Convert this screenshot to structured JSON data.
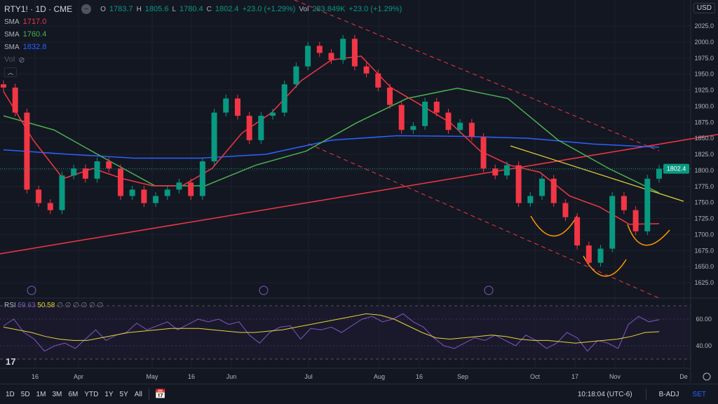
{
  "header": {
    "symbol": "RTY1! · 1D · CME",
    "o_label": "O",
    "open": "1783.7",
    "h_label": "H",
    "high": "1805.6",
    "l_label": "L",
    "low": "1780.4",
    "c_label": "C",
    "close": "1802.4",
    "change": "+23.0 (+1.29%)",
    "vol_label": "Vol",
    "volume": "283.849K",
    "vol_change": "+23.0 (+1.29%)",
    "currency": "USD"
  },
  "indicators": [
    {
      "name": "SMA",
      "value": "1717.0",
      "color": "#f23645"
    },
    {
      "name": "SMA",
      "value": "1760.4",
      "color": "#4caf50"
    },
    {
      "name": "SMA",
      "value": "1832.8",
      "color": "#2962ff"
    }
  ],
  "vol_label": "Vol",
  "rsi": {
    "label": "RSI",
    "value": "59.63",
    "ma_value": "50.58",
    "extra": "∅ ∅ ∅ ∅ ∅ ∅",
    "levels": [
      "60.00",
      "40.00"
    ],
    "color": "#7e57c2",
    "ma_color": "#e6d33a"
  },
  "chart_data": {
    "type": "candlestick",
    "symbol": "RTY1!",
    "price_ticks": [
      "2025.0",
      "2000.0",
      "1975.0",
      "1950.0",
      "1925.0",
      "1900.0",
      "1875.0",
      "1850.0",
      "1825.0",
      "1800.0",
      "1775.0",
      "1750.0",
      "1725.0",
      "1700.0",
      "1675.0",
      "1650.0",
      "1625.0"
    ],
    "x_ticks": [
      "16",
      "Apr",
      "May",
      "16",
      "Jun",
      "Jul",
      "Aug",
      "16",
      "Sep",
      "Oct",
      "17",
      "Nov",
      "De"
    ],
    "last_price": "1802.4",
    "closes": [
      1929,
      1890,
      1770,
      1749,
      1738,
      1792,
      1803,
      1787,
      1814,
      1803,
      1760,
      1770,
      1749,
      1760,
      1770,
      1781,
      1760,
      1814,
      1890,
      1912,
      1885,
      1847,
      1885,
      1890,
      1934,
      1962,
      1994,
      1983,
      1972,
      2005,
      1962,
      1951,
      1929,
      1902,
      1863,
      1869,
      1907,
      1890,
      1863,
      1874,
      1852,
      1803,
      1792,
      1808,
      1749,
      1760,
      1787,
      1749,
      1727,
      1683,
      1656,
      1678,
      1760,
      1738,
      1705,
      1787,
      1802.4
    ],
    "sma_red": [
      1923,
      1847,
      1787,
      1803,
      1787,
      1776,
      1776,
      1803,
      1858,
      1890,
      1940,
      1972,
      1978,
      1929,
      1902,
      1874,
      1830,
      1808,
      1797,
      1760,
      1743,
      1716,
      1717
    ],
    "sma_green": [
      1885,
      1863,
      1819,
      1776,
      1776,
      1808,
      1830,
      1874,
      1912,
      1928,
      1912,
      1847,
      1803,
      1765
    ],
    "sma_blue": [
      1832,
      1825,
      1819,
      1819,
      1825,
      1847,
      1854,
      1853,
      1850,
      1841,
      1836
    ],
    "rsi": [
      55,
      60,
      50,
      45,
      36,
      40,
      42,
      38,
      45,
      52,
      44,
      48,
      50,
      57,
      52,
      55,
      58,
      52,
      56,
      60,
      58,
      60,
      56,
      58,
      48,
      42,
      50,
      54,
      55,
      45,
      53,
      52,
      54,
      50,
      55,
      60,
      62,
      58,
      60,
      64,
      58,
      54,
      46,
      40,
      38,
      42,
      46,
      44,
      48,
      44,
      40,
      48,
      44,
      38,
      42,
      50,
      46,
      36,
      44,
      42,
      38,
      56,
      62,
      58,
      59.63
    ],
    "rsi_ma": [
      54,
      52,
      50,
      47,
      45,
      44,
      44,
      46,
      48,
      50,
      51,
      52,
      53,
      53,
      53,
      52,
      51,
      50,
      50,
      51,
      52,
      54,
      56,
      58,
      60,
      62,
      64,
      63,
      60,
      55,
      50,
      46,
      45,
      46,
      47,
      48,
      47,
      45,
      44,
      44,
      43,
      42,
      43,
      44,
      45,
      47,
      50,
      50.58
    ],
    "rsi_levels": [
      60,
      40
    ]
  },
  "toolbar": {
    "ranges": [
      "1D",
      "5D",
      "1M",
      "3M",
      "6M",
      "YTD",
      "1Y",
      "5Y",
      "All"
    ],
    "time": "10:18:04 (UTC-6)",
    "badj": "B-ADJ",
    "set": "SET"
  },
  "colors": {
    "up": "#089981",
    "down": "#f23645",
    "trend": "#f23645",
    "yellow_line": "#e6d33a",
    "arc": "#ff9800"
  }
}
